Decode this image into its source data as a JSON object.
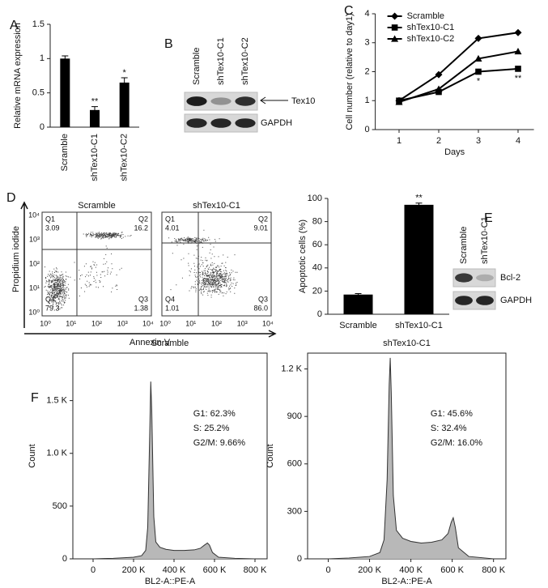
{
  "panel_labels": [
    "A",
    "B",
    "C",
    "D",
    "E",
    "F"
  ],
  "chart_data": [
    {
      "type": "bar",
      "ylabel": "Relative mRNA expression",
      "categories": [
        "Scramble",
        "shTex10-C1",
        "shTex10-C2"
      ],
      "values": [
        1.0,
        0.25,
        0.65
      ],
      "errors": [
        0.04,
        0.05,
        0.07
      ],
      "color": "#000000",
      "ylim": [
        0,
        1.5
      ],
      "yticks": [
        0,
        0.5,
        1,
        1.5
      ],
      "annotations": [
        {
          "text": "**",
          "x": "shTex10-C1"
        },
        {
          "text": "*",
          "x": "shTex10-C2"
        }
      ]
    },
    {
      "type": "line",
      "xlabel": "Days",
      "ylabel": "Cell number (relative to day1)",
      "x": [
        1,
        2,
        3,
        4
      ],
      "series": [
        {
          "name": "Scramble",
          "color": "#000000",
          "marker": "diamond",
          "values": [
            1.0,
            1.9,
            3.15,
            3.35
          ]
        },
        {
          "name": "shTex10-C1",
          "color": "#000000",
          "marker": "square",
          "values": [
            1.0,
            1.3,
            2.0,
            2.1
          ]
        },
        {
          "name": "shTex10-C2",
          "color": "#000000",
          "marker": "triangle",
          "values": [
            0.95,
            1.4,
            2.45,
            2.7
          ]
        }
      ],
      "xlim": [
        0.4,
        4.4
      ],
      "ylim": [
        0,
        4
      ],
      "xticks": [
        1,
        2,
        3,
        4
      ],
      "yticks": [
        0,
        1,
        2,
        3,
        4
      ],
      "legend": "upper left",
      "annotations": [
        {
          "text": "*",
          "x": 3,
          "series": "shTex10-C1"
        },
        {
          "text": "**",
          "x": 4,
          "series": "shTex10-C1"
        }
      ]
    },
    {
      "type": "bar",
      "ylabel": "Apoptotic cells (%)",
      "categories": [
        "Scramble",
        "shTex10-C1"
      ],
      "values": [
        17,
        94.5
      ],
      "errors": [
        0.8,
        1.5
      ],
      "color": "#000000",
      "ylim": [
        0,
        100
      ],
      "yticks": [
        0,
        20,
        40,
        60,
        80,
        100
      ],
      "annotations": [
        {
          "text": "**",
          "x": "shTex10-C1"
        }
      ]
    },
    {
      "type": "area",
      "title": "Scramble",
      "xlabel": "BL2-A::PE-A",
      "ylabel": "Count",
      "x": [
        0,
        100000,
        200000,
        240000,
        260000,
        270000,
        280000,
        285000,
        290000,
        300000,
        310000,
        330000,
        360000,
        400000,
        450000,
        500000,
        530000,
        550000,
        565000,
        575000,
        590000,
        620000,
        700000,
        800000
      ],
      "values": [
        0,
        5,
        15,
        30,
        80,
        300,
        1200,
        1680,
        1400,
        400,
        160,
        110,
        90,
        80,
        80,
        85,
        100,
        130,
        150,
        130,
        60,
        15,
        5,
        0
      ],
      "color": "#b8b8b8",
      "xlim": [
        -100000,
        860000
      ],
      "ylim": [
        0,
        1950
      ],
      "xticks": [
        0,
        {
          "value": 200000,
          "label": "200 K"
        },
        {
          "value": 400000,
          "label": "400 K"
        },
        {
          "value": 600000,
          "label": "600 K"
        },
        {
          "value": 800000,
          "label": "800 K"
        }
      ],
      "yticks": [
        0,
        500,
        {
          "value": 1000,
          "label": "1.0 K"
        },
        {
          "value": 1500,
          "label": "1.5 K"
        }
      ],
      "annotations": [
        "G1: 62.3%",
        "S: 25.2%",
        "G2/M: 9.66%"
      ]
    },
    {
      "type": "area",
      "title": "shTex10-C1",
      "xlabel": "BL2-A::PE-A",
      "ylabel": "Count",
      "x": [
        0,
        100000,
        200000,
        250000,
        270000,
        285000,
        295000,
        300000,
        305000,
        315000,
        330000,
        360000,
        400000,
        450000,
        500000,
        550000,
        580000,
        595000,
        605000,
        615000,
        630000,
        680000,
        800000
      ],
      "values": [
        0,
        5,
        15,
        40,
        120,
        500,
        1100,
        1270,
        1050,
        400,
        180,
        130,
        110,
        100,
        105,
        120,
        160,
        230,
        260,
        200,
        70,
        15,
        0
      ],
      "color": "#b8b8b8",
      "xlim": [
        -100000,
        860000
      ],
      "ylim": [
        0,
        1300
      ],
      "xticks": [
        0,
        {
          "value": 200000,
          "label": "200 K"
        },
        {
          "value": 400000,
          "label": "400 K"
        },
        {
          "value": 600000,
          "label": "600 K"
        },
        {
          "value": 800000,
          "label": "800 K"
        }
      ],
      "yticks": [
        0,
        300,
        600,
        900,
        {
          "value": 1200,
          "label": "1.2 K"
        }
      ],
      "annotations": [
        "G1: 45.6%",
        "S: 32.4%",
        "G2/M: 16.0%"
      ]
    }
  ],
  "blot_B": {
    "lanes": [
      "Scramble",
      "shTex10-C1",
      "shTex10-C2"
    ],
    "rows": [
      "Tex10",
      "GAPDH"
    ]
  },
  "flow_D": {
    "xlabel": "Annexin V",
    "ylabel": "Propidium iodide",
    "ticks": [
      "10⁰",
      "10¹",
      "10²",
      "10³",
      "10⁴"
    ],
    "plots": [
      {
        "title": "Scramble",
        "quadrants": [
          [
            "Q1",
            "3.09"
          ],
          [
            "Q2",
            "16.2"
          ],
          [
            "Q3",
            "1.38"
          ],
          [
            "Q4",
            "79.3"
          ]
        ]
      },
      {
        "title": "shTex10-C1",
        "quadrants": [
          [
            "Q1",
            "4.01"
          ],
          [
            "Q2",
            "9.01"
          ],
          [
            "Q3",
            "86.0"
          ],
          [
            "Q4",
            "1.01"
          ]
        ]
      }
    ]
  },
  "blot_E": {
    "lanes": [
      "Scramble",
      "shTex10-C1"
    ],
    "rows": [
      "Bcl-2",
      "GAPDH"
    ]
  }
}
